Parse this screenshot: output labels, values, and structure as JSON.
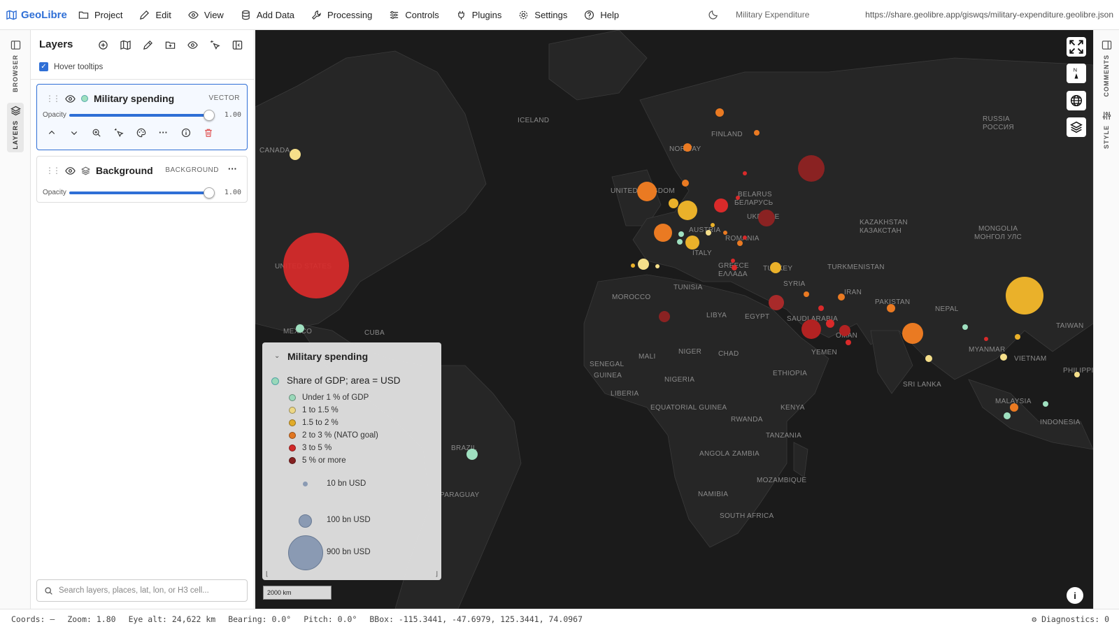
{
  "app": {
    "brand": "GeoLibre",
    "project_title": "Military Expenditure",
    "url": "https://share.geolibre.app/giswqs/military-expenditure.geolibre.json"
  },
  "menu": [
    "Project",
    "Edit",
    "View",
    "Add Data",
    "Processing",
    "Controls",
    "Plugins",
    "Settings",
    "Help"
  ],
  "rail": {
    "browser": "BROWSER",
    "layers": "LAYERS",
    "comments": "COMMENTS",
    "style": "STYLE"
  },
  "panel": {
    "title": "Layers",
    "hover_tooltips": "Hover tooltips",
    "hover_checked": true,
    "layers": [
      {
        "name": "Military spending",
        "type": "VECTOR",
        "opacity_label": "Opacity",
        "opacity": "1.00",
        "opacity_fraction": 1.0
      },
      {
        "name": "Background",
        "type": "BACKGROUND",
        "opacity_label": "Opacity",
        "opacity": "1.00",
        "opacity_fraction": 1.0
      }
    ],
    "search_placeholder": "Search layers, places, lat, lon, or H3 cell..."
  },
  "map_labels": [
    {
      "text": "ICELAND"
    },
    {
      "text": "CANADA"
    },
    {
      "text": "FINLAND"
    },
    {
      "text": "NORWAY"
    },
    {
      "text": "RUSSIA"
    },
    {
      "text": "РОССИЯ"
    },
    {
      "text": "UNITED KINGDOM"
    },
    {
      "text": "BELARUS"
    },
    {
      "text": "БЕЛАРУСЬ"
    },
    {
      "text": "UKRAINE"
    },
    {
      "text": "KAZAKHSTAN"
    },
    {
      "text": "КАЗАКСТАН"
    },
    {
      "text": "MONGOLIA"
    },
    {
      "text": "МОНГОЛ УЛС"
    },
    {
      "text": "UNITED STATES"
    },
    {
      "text": "ROMANIA"
    },
    {
      "text": "AUSTRIA"
    },
    {
      "text": "ITALY"
    },
    {
      "text": "GREECE"
    },
    {
      "text": "ΕΛΛΑΔΑ"
    },
    {
      "text": "TURKEY"
    },
    {
      "text": "TURKMENISTAN"
    },
    {
      "text": "TUNISIA"
    },
    {
      "text": "SYRIA"
    },
    {
      "text": "IRAN"
    },
    {
      "text": "PAKISTAN"
    },
    {
      "text": "NEPAL"
    },
    {
      "text": "MOROCCO"
    },
    {
      "text": "LIBYA"
    },
    {
      "text": "EGYPT"
    },
    {
      "text": "SAUDI ARABIA"
    },
    {
      "text": "YEMEN"
    },
    {
      "text": "OMAN"
    },
    {
      "text": "MEXICO"
    },
    {
      "text": "CUBA"
    },
    {
      "text": "MYANMAR"
    },
    {
      "text": "VIETNAM"
    },
    {
      "text": "TAIWAN"
    },
    {
      "text": "PHILIPPINES"
    },
    {
      "text": "SENEGAL"
    },
    {
      "text": "MALI"
    },
    {
      "text": "NIGER"
    },
    {
      "text": "CHAD"
    },
    {
      "text": "GUINEA"
    },
    {
      "text": "LIBERIA"
    },
    {
      "text": "NIGERIA"
    },
    {
      "text": "ETHIOPIA"
    },
    {
      "text": "SRI LANKA"
    },
    {
      "text": "MALAYSIA"
    },
    {
      "text": "INDONESIA"
    },
    {
      "text": "EQUATORIAL GUINEA"
    },
    {
      "text": "KENYA"
    },
    {
      "text": "RWANDA"
    },
    {
      "text": "TANZANIA"
    },
    {
      "text": "ANGOLA"
    },
    {
      "text": "ZAMBIA"
    },
    {
      "text": "MOZAMBIQUE"
    },
    {
      "text": "NAMIBIA"
    },
    {
      "text": "SOUTH AFRICA"
    },
    {
      "text": "BRAZIL"
    },
    {
      "text": "PARAGUAY"
    }
  ],
  "legend": {
    "title": "Military spending",
    "subtitle": "Share of GDP; area = USD",
    "classes": [
      {
        "label": "Under 1 % of GDP",
        "color": "#9fe0c0"
      },
      {
        "label": "1 to 1.5 %",
        "color": "#f5df8a"
      },
      {
        "label": "1.5 to 2 %",
        "color": "#eab12a"
      },
      {
        "label": "2 to 3 % (NATO goal)",
        "color": "#ea7a22"
      },
      {
        "label": "3 to 5 %",
        "color": "#d92a2a"
      },
      {
        "label": "5 % or more",
        "color": "#8a2222"
      }
    ],
    "sizes": [
      {
        "label": "10 bn USD",
        "value_bn": 10
      },
      {
        "label": "100 bn USD",
        "value_bn": 100
      },
      {
        "label": "900 bn USD",
        "value_bn": 900
      }
    ],
    "size_color": "#8fa0ba"
  },
  "scale_bar": "2000 km",
  "status": {
    "coords": "Coords: —",
    "zoom": "Zoom: 1.80",
    "eye_alt": "Eye alt: 24,622 km",
    "bearing": "Bearing: 0.0°",
    "pitch": "Pitch: 0.0°",
    "bbox": "BBox: -115.3441, -47.6979, 125.3441, 74.0967",
    "diagnostics": "Diagnostics: 0"
  },
  "colors": {
    "accent": "#2f6fd6",
    "map_bg": "#1b1b1b",
    "land": "#262626",
    "danger": "#e05050"
  },
  "map_controls": [
    "fullscreen-icon",
    "compass-icon",
    "globe-icon",
    "layers-icon"
  ]
}
